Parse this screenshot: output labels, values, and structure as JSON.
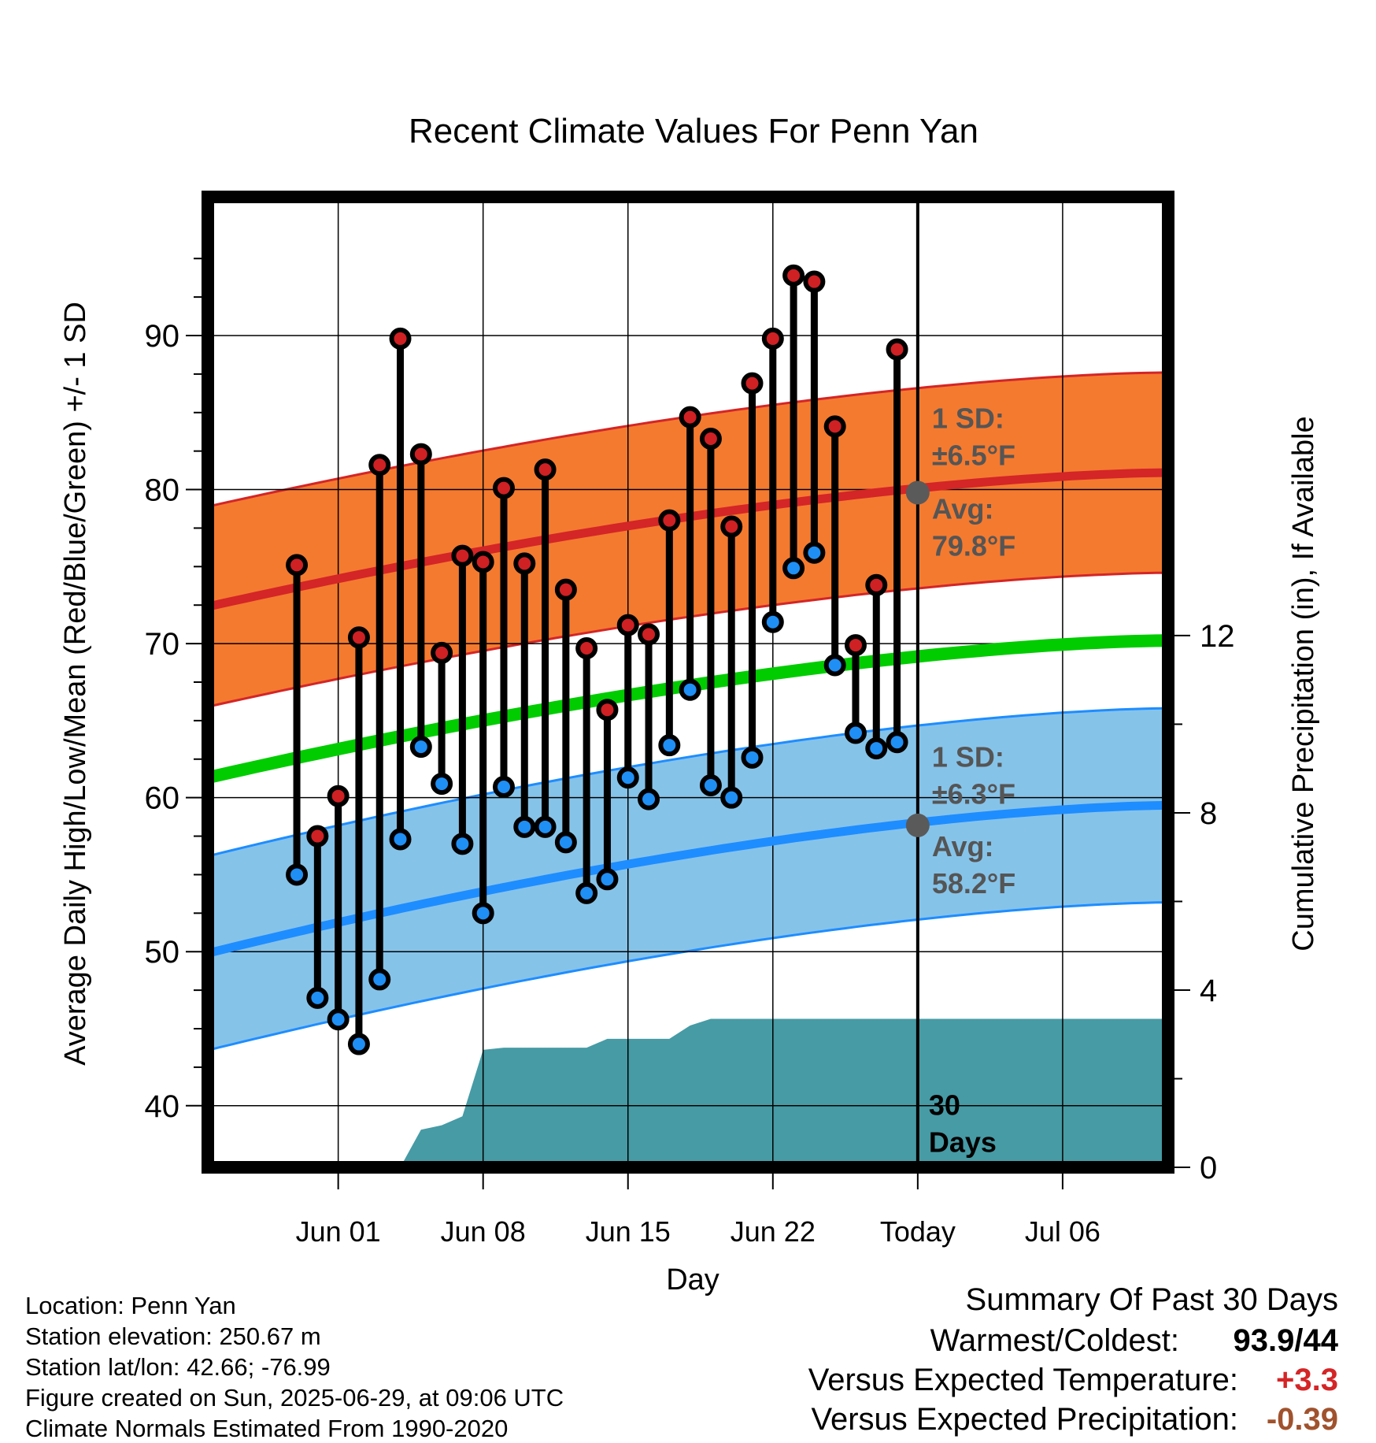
{
  "chart_data": {
    "type": "line",
    "title": "Recent Climate Values For Penn Yan",
    "xlabel": "Day",
    "ylabel": "Average Daily High/Low/Mean (Red/Blue/Green) +/- 1 SD",
    "y2label": "Cumulative Precipitation (in), If Available",
    "ylim": [
      36,
      99
    ],
    "y2lim": [
      0,
      21.9
    ],
    "x_range_days": [
      -34.3,
      12.1
    ],
    "x_ticks": [
      {
        "day": -28,
        "label": "Jun 01"
      },
      {
        "day": -21,
        "label": "Jun 08"
      },
      {
        "day": -14,
        "label": "Jun 15"
      },
      {
        "day": -7,
        "label": "Jun 22"
      },
      {
        "day": 0,
        "label": "Today"
      },
      {
        "day": 7,
        "label": "Jul 06"
      }
    ],
    "y_ticks": [
      40,
      50,
      60,
      70,
      80,
      90
    ],
    "y2_ticks": [
      0,
      4,
      8,
      12
    ],
    "grid": true,
    "x_days": [
      -30,
      -29,
      -28,
      -27,
      -26,
      -25,
      -24,
      -23,
      -22,
      -21,
      -20,
      -19,
      -18,
      -17,
      -16,
      -15,
      -14,
      -13,
      -12,
      -11,
      -10,
      -9,
      -8,
      -7,
      -6,
      -5,
      -4,
      -3,
      -2,
      -1
    ],
    "highs": [
      75.1,
      57.5,
      60.1,
      70.4,
      81.6,
      89.8,
      82.3,
      69.4,
      75.7,
      75.3,
      80.1,
      75.2,
      81.3,
      73.5,
      69.7,
      65.7,
      71.2,
      70.6,
      78.0,
      84.7,
      83.3,
      77.6,
      86.9,
      89.8,
      93.9,
      93.5,
      84.1,
      69.9,
      73.8,
      89.1
    ],
    "lows": [
      55.0,
      47.0,
      45.6,
      44.0,
      48.2,
      57.3,
      63.3,
      60.9,
      57.0,
      52.5,
      60.7,
      58.1,
      58.1,
      57.1,
      53.8,
      54.7,
      61.3,
      59.9,
      63.4,
      67.0,
      60.8,
      60.0,
      62.6,
      71.4,
      74.9,
      75.9,
      68.6,
      64.2,
      63.2,
      63.6
    ],
    "normal_high": {
      "start": 72.4,
      "end": 81.1
    },
    "normal_high_sd": 6.5,
    "normal_low": {
      "start": 49.9,
      "end": 59.5
    },
    "normal_low_sd": 6.3,
    "normal_mean": {
      "start": 61.3,
      "end": 70.2
    },
    "precip_steps": [
      {
        "day": -27,
        "value": 0
      },
      {
        "day": -25,
        "value": 0
      },
      {
        "day": -24,
        "value": 0.85
      },
      {
        "day": -23,
        "value": 0.95
      },
      {
        "day": -22,
        "value": 1.15
      },
      {
        "day": -21,
        "value": 2.65
      },
      {
        "day": -20,
        "value": 2.7
      },
      {
        "day": -16,
        "value": 2.7
      },
      {
        "day": -15,
        "value": 2.9
      },
      {
        "day": -12,
        "value": 2.9
      },
      {
        "day": -11,
        "value": 3.2
      },
      {
        "day": -10,
        "value": 3.35
      },
      {
        "day": 12.1,
        "value": 3.35
      }
    ],
    "annotations": {
      "high_sd_label_1": "1 SD:",
      "high_sd_label_2": "±6.5°F",
      "high_avg_label_1": "Avg:",
      "high_avg_label_2": "79.8°F",
      "high_avg_value": 79.8,
      "low_sd_label_1": "1 SD:",
      "low_sd_label_2": "±6.3°F",
      "low_avg_label_1": "Avg:",
      "low_avg_label_2": "58.2°F",
      "low_avg_value": 58.2,
      "days_label_1": "30",
      "days_label_2": "Days"
    },
    "colors": {
      "high_band": "#f47a2f",
      "high_line": "#d42527",
      "low_band": "#86c3e9",
      "low_line": "#1e8dff",
      "mean_line": "#00cc00",
      "precip": "#469ba5",
      "high_dot": "#cf2024",
      "low_dot": "#1f8ff5",
      "avg_dot": "#5a5a5a",
      "annotation_text": "#555555"
    }
  },
  "info": {
    "location": "Location: Penn Yan",
    "elevation": "Station elevation: 250.67 m",
    "latlon": "Station lat/lon: 42.66; -76.99",
    "created": "Figure created on Sun, 2025-06-29, at 09:06 UTC",
    "normals": "Climate Normals Estimated From 1990-2020"
  },
  "summary": {
    "title": "Summary Of Past 30 Days",
    "warm_cold_label": "Warmest/Coldest:",
    "warm_cold_value": "93.9/44",
    "temp_label": "Versus Expected Temperature:",
    "temp_value": "+3.3",
    "temp_color": "#d42527",
    "precip_label": "Versus Expected Precipitation:",
    "precip_value": "-0.39",
    "precip_color": "#a0522d"
  }
}
